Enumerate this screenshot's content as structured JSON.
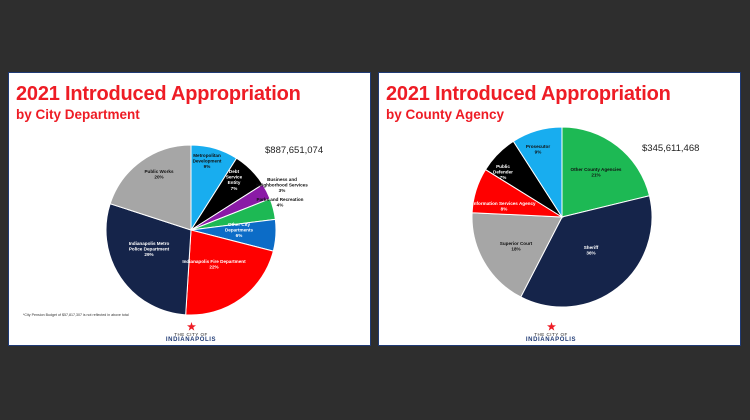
{
  "chart_data": [
    {
      "type": "pie",
      "title": "2021 Introduced Appropriation",
      "subtitle": "by City Department",
      "total": "$887,651,074",
      "footnote": "*City Pension Budget of $57,817,307 is not reflected in above total",
      "slices": [
        {
          "name": "Metropolitan Development",
          "label": "Metropolitan Development",
          "pct": "9%",
          "value": 9,
          "color": "#18adef"
        },
        {
          "name": "Debt Service Entity",
          "label": "Debt Service Entity",
          "pct": "7%",
          "value": 7,
          "color": "#000000"
        },
        {
          "name": "Business and Neighborhood Services",
          "label": "Business and Neighborhood Services",
          "pct": "3%",
          "value": 3,
          "color": "#8a1aa6"
        },
        {
          "name": "Parks and Recreation",
          "label": "Parks and Recreation",
          "pct": "4%",
          "value": 4,
          "color": "#1db954"
        },
        {
          "name": "Other City Departments",
          "label": "Other City Departments",
          "pct": "6%",
          "value": 6,
          "color": "#0c6cc7"
        },
        {
          "name": "Indianapolis Fire Department",
          "label": "Indianapolis Fire Department",
          "pct": "22%",
          "value": 22,
          "color": "#ff0000"
        },
        {
          "name": "Indianapolis Metro Police Department",
          "label": "Indianapolis Metro Police Department",
          "pct": "29%",
          "value": 29,
          "color": "#15244a"
        },
        {
          "name": "Public Works",
          "label": "Public Works",
          "pct": "20%",
          "value": 20,
          "color": "#a6a6a6"
        }
      ]
    },
    {
      "type": "pie",
      "title": "2021 Introduced Appropriation",
      "subtitle": "by County Agency",
      "total": "$345,611,468",
      "slices": [
        {
          "name": "Other County Agencies",
          "label": "Other County Agencies",
          "pct": "21%",
          "value": 21,
          "color": "#1db954"
        },
        {
          "name": "Sheriff",
          "label": "Sheriff",
          "pct": "36%",
          "value": 36,
          "color": "#15244a"
        },
        {
          "name": "Superior Court",
          "label": "Superior Court",
          "pct": "18%",
          "value": 18,
          "color": "#a6a6a6"
        },
        {
          "name": "Information Services Agency",
          "label": "Information Services Agency",
          "pct": "8%",
          "value": 8,
          "color": "#ff0000"
        },
        {
          "name": "Public Defender",
          "label": "Public Defender",
          "pct": "7%",
          "value": 7,
          "color": "#000000"
        },
        {
          "name": "Prosecutor",
          "label": "Prosecutor",
          "pct": "9%",
          "value": 9,
          "color": "#18adef"
        }
      ]
    }
  ],
  "logo": {
    "small": "THE CITY OF",
    "big": "INDIANAPOLIS",
    "star_color": "#ee1c25"
  }
}
